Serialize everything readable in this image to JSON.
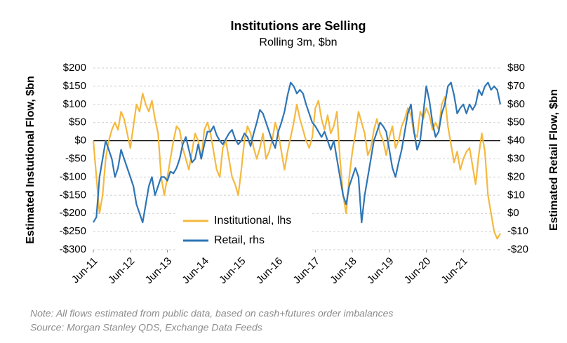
{
  "chart_data": {
    "type": "line",
    "title": "Institutions are Selling",
    "subtitle": "Rolling 3m, $bn",
    "y_label": "Estimated Instutional Flow, $bn",
    "y2_label": "Estimated Retail Flow, $bn",
    "notes": [
      "Note:  All flows estimated from public data, based on cash+futures order imbalances",
      "Source: Morgan Stanley QDS, Exchange Data Feeds"
    ],
    "categories": [
      "Jun-11",
      null,
      null,
      null,
      null,
      null,
      null,
      null,
      null,
      null,
      null,
      null,
      "Jun-12",
      null,
      null,
      null,
      null,
      null,
      null,
      null,
      null,
      null,
      null,
      null,
      "Jun-13",
      null,
      null,
      null,
      null,
      null,
      null,
      null,
      null,
      null,
      null,
      null,
      "Jun-14",
      null,
      null,
      null,
      null,
      null,
      null,
      null,
      null,
      null,
      null,
      null,
      "Jun-15",
      null,
      null,
      null,
      null,
      null,
      null,
      null,
      null,
      null,
      null,
      null,
      "Jun-16",
      null,
      null,
      null,
      null,
      null,
      null,
      null,
      null,
      null,
      null,
      null,
      "Jun-17",
      null,
      null,
      null,
      null,
      null,
      null,
      null,
      null,
      null,
      null,
      null,
      "Jun-18",
      null,
      null,
      null,
      null,
      null,
      null,
      null,
      null,
      null,
      null,
      null,
      "Jun-19",
      null,
      null,
      null,
      null,
      null,
      null,
      null,
      null,
      null,
      null,
      null,
      "Jun-20",
      null,
      null,
      null,
      null,
      null,
      null,
      null,
      null,
      null,
      null,
      null,
      "Jun-21",
      null,
      null,
      null,
      null,
      null,
      null,
      null,
      null,
      null,
      null,
      null,
      null
    ],
    "series": [
      {
        "name": "Institutional, lhs",
        "color": "#f5b93f",
        "axis": "y",
        "values": [
          0,
          -100,
          -200,
          -150,
          -50,
          0,
          30,
          50,
          30,
          80,
          60,
          20,
          -20,
          40,
          100,
          80,
          130,
          100,
          80,
          110,
          60,
          20,
          -100,
          -150,
          -100,
          -50,
          0,
          40,
          30,
          -20,
          -50,
          -80,
          -30,
          20,
          0,
          -50,
          30,
          50,
          20,
          -30,
          -80,
          -100,
          -20,
          0,
          -50,
          -100,
          -120,
          -150,
          -80,
          0,
          40,
          20,
          -20,
          -50,
          -20,
          20,
          -50,
          -30,
          0,
          50,
          20,
          -30,
          -80,
          -30,
          10,
          50,
          100,
          60,
          30,
          0,
          -20,
          10,
          90,
          110,
          60,
          30,
          70,
          20,
          40,
          80,
          -50,
          -150,
          -200,
          -100,
          -30,
          20,
          80,
          50,
          20,
          -40,
          -20,
          30,
          60,
          20,
          0,
          -40,
          10,
          40,
          -20,
          0,
          40,
          60,
          90,
          70,
          20,
          10,
          80,
          60,
          90,
          70,
          30,
          50,
          30,
          100,
          120,
          40,
          -10,
          -60,
          -30,
          -80,
          -50,
          -30,
          -20,
          -70,
          -120,
          -40,
          20,
          -30,
          -150,
          -200,
          -250,
          -270,
          -255
        ]
      },
      {
        "name": "Retail, rhs",
        "color": "#2e75b6",
        "axis": "y2",
        "values": [
          -5,
          -2,
          20,
          30,
          40,
          35,
          30,
          20,
          25,
          35,
          30,
          25,
          20,
          15,
          5,
          0,
          -5,
          5,
          15,
          20,
          10,
          15,
          20,
          20,
          18,
          23,
          22,
          25,
          30,
          38,
          42,
          35,
          28,
          30,
          38,
          30,
          38,
          45,
          45,
          48,
          43,
          40,
          38,
          41,
          44,
          46,
          41,
          38,
          40,
          44,
          42,
          37,
          44,
          50,
          57,
          55,
          50,
          45,
          40,
          36,
          45,
          50,
          56,
          65,
          72,
          70,
          66,
          68,
          66,
          60,
          55,
          50,
          48,
          45,
          42,
          45,
          40,
          35,
          40,
          30,
          20,
          10,
          5,
          15,
          20,
          25,
          20,
          -5,
          10,
          20,
          30,
          40,
          45,
          50,
          48,
          45,
          35,
          25,
          20,
          28,
          35,
          45,
          55,
          60,
          45,
          35,
          40,
          55,
          70,
          62,
          50,
          42,
          45,
          55,
          60,
          70,
          72,
          65,
          55,
          58,
          60,
          55,
          60,
          57,
          60,
          68,
          65,
          70,
          72,
          68,
          70,
          68,
          60
        ]
      }
    ],
    "ylim": [
      -300,
      200
    ],
    "yticks": [
      {
        "value": 200,
        "label": "$200"
      },
      {
        "value": 150,
        "label": "$150"
      },
      {
        "value": 100,
        "label": "$100"
      },
      {
        "value": 50,
        "label": "$50"
      },
      {
        "value": 0,
        "label": "$0"
      },
      {
        "value": -50,
        "label": "-$50"
      },
      {
        "value": -100,
        "label": "-$100"
      },
      {
        "value": -150,
        "label": "-$150"
      },
      {
        "value": -200,
        "label": "-$200"
      },
      {
        "value": -250,
        "label": "-$250"
      },
      {
        "value": -300,
        "label": "-$300"
      }
    ],
    "y2lim": [
      -20,
      80
    ],
    "y2ticks": [
      {
        "value": 80,
        "label": "$80"
      },
      {
        "value": 70,
        "label": "$70"
      },
      {
        "value": 60,
        "label": "$60"
      },
      {
        "value": 50,
        "label": "$50"
      },
      {
        "value": 40,
        "label": "$40"
      },
      {
        "value": 30,
        "label": "$30"
      },
      {
        "value": 20,
        "label": "$20"
      },
      {
        "value": 10,
        "label": "$10"
      },
      {
        "value": 0,
        "label": "$0"
      },
      {
        "value": -10,
        "label": "-$10"
      },
      {
        "value": -20,
        "label": "-$20"
      }
    ],
    "grid": true,
    "legend": "bottom-left"
  }
}
